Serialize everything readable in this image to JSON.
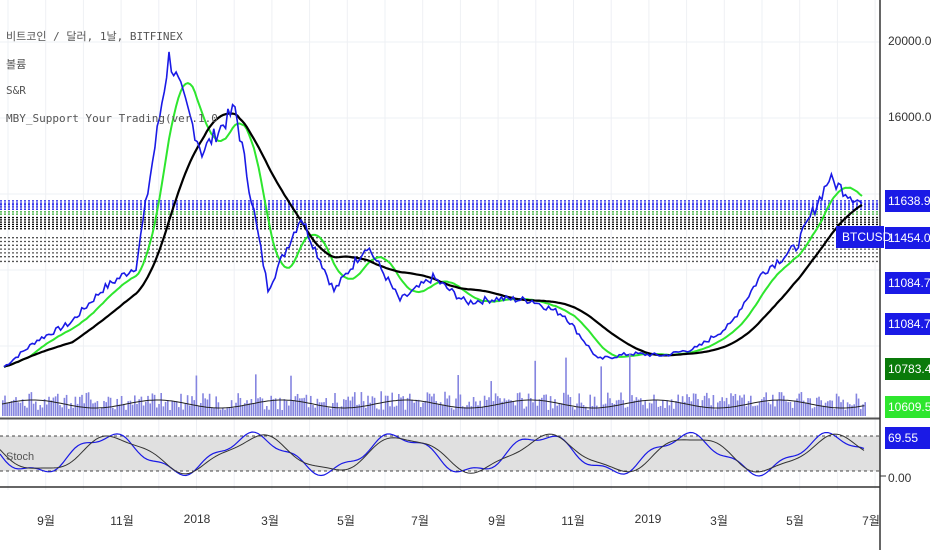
{
  "legend": {
    "line1": "비트코인 / 달러, 1날, BITFINEX",
    "line2": "볼륨",
    "line3": "S&R",
    "line4": "MBY_Support Your Trading(ver.1.0"
  },
  "price_axis": {
    "ticks": [
      "20000.0",
      "16000.0"
    ]
  },
  "price_labels": [
    {
      "text": "11638.9",
      "color": "#1a1ae6"
    },
    {
      "text": "11454.0",
      "color": "#1a1ae6"
    },
    {
      "text": "11084.7",
      "color": "#1a1ae6"
    },
    {
      "text": "11084.7",
      "color": "#1a1ae6"
    },
    {
      "text": "10783.4",
      "color": "#0a7a0a"
    },
    {
      "text": "10609.5",
      "color": "#2ee62e"
    }
  ],
  "symbol_tag": {
    "text": "BTCUSD",
    "color": "#1a1ae6"
  },
  "stoch": {
    "label": "Stoch",
    "value_tag": "69.55",
    "zero_tick": "0.00"
  },
  "x_axis": {
    "labels": [
      "9월",
      "11월",
      "2018",
      "3월",
      "5월",
      "7월",
      "9월",
      "11월",
      "2019",
      "3월",
      "5월",
      "7월"
    ]
  },
  "chart_data": {
    "type": "line",
    "title": "비트코인 / 달러, 1날, BITFINEX",
    "x": [
      "2017-08",
      "2017-09",
      "2017-10",
      "2017-11",
      "2017-11-20",
      "2017-12-17",
      "2018-01",
      "2018-01-07",
      "2018-02-06",
      "2018-03-01",
      "2018-04",
      "2018-05",
      "2018-06",
      "2018-07",
      "2018-08",
      "2018-09",
      "2018-10",
      "2018-11",
      "2018-12",
      "2019-01",
      "2019-02",
      "2019-03",
      "2019-04",
      "2019-05",
      "2019-06",
      "2019-06-26",
      "2019-06-30"
    ],
    "series": [
      {
        "name": "BTCUSD",
        "color": "#1a1ae6",
        "values": [
          2900,
          4300,
          5200,
          7000,
          8200,
          19200,
          14200,
          16500,
          7000,
          10800,
          6900,
          9300,
          6400,
          7600,
          6300,
          6500,
          6400,
          5600,
          3300,
          3600,
          3500,
          3900,
          5100,
          7900,
          9200,
          12800,
          11500
        ]
      }
    ],
    "y_ticks": [
      20000,
      16000
    ],
    "lower_panel_ticks": [
      0,
      69.55
    ],
    "x_tick_labels": [
      "9월",
      "11월",
      "2018",
      "3월",
      "5월",
      "7월",
      "9월",
      "11월",
      "2019",
      "3월",
      "5월",
      "7월"
    ]
  },
  "colors": {
    "price": "#1a1ae6",
    "fast_ma": "#2ee62e",
    "slow_ma": "#000000",
    "volume": "#8585e0",
    "stoch_k": "#1a1ae6",
    "stoch_d": "#333333",
    "stoch_band": "#e0e0e0"
  }
}
